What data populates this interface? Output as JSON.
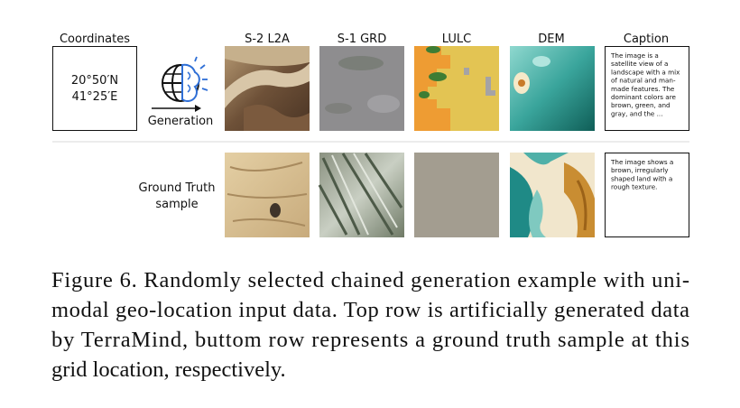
{
  "header": {
    "columns": [
      "Coordinates",
      "S-2 L2A",
      "S-1 GRD",
      "LULC",
      "DEM",
      "Caption"
    ]
  },
  "coordinates": [
    "20°50′N",
    "41°25′E"
  ],
  "generation_label": "Generation",
  "ground_truth_label": [
    "Ground Truth",
    "sample"
  ],
  "captions": {
    "generated": [
      "The image is a",
      "satellite view of a",
      "landscape with a mix",
      "of natural and man-",
      "made features. The",
      "dominant colors are",
      "brown, green, and",
      "gray, and the ..."
    ],
    "ground_truth": [
      "The image shows a",
      "brown, irregularly",
      "shaped land with a",
      "rough texture."
    ]
  },
  "figure_caption": [
    "Figure 6. Randomly selected chained generation example with uni-",
    "modal geo-location input data. Top row is artificially generated data",
    "by TerraMind, buttom row represents a ground truth sample at this",
    "grid location, respectively."
  ]
}
